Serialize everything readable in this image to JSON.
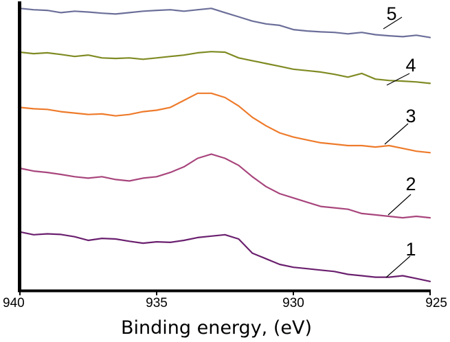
{
  "chart_data": {
    "type": "line",
    "title": "",
    "xlabel": "Binding energy, (eV)",
    "ylabel": "",
    "xlim": [
      940,
      925
    ],
    "x_reversed": true,
    "ylim": [
      0,
      1
    ],
    "yaxis_ticks_visible": false,
    "grid": false,
    "legend": "none",
    "xticks": [
      "940",
      "935",
      "930",
      "925"
    ],
    "series": [
      {
        "name": "1",
        "color": "#6a1f6e",
        "points": [
          [
            940,
            0.195
          ],
          [
            939.5,
            0.185
          ],
          [
            939,
            0.188
          ],
          [
            938.5,
            0.186
          ],
          [
            938,
            0.178
          ],
          [
            937.5,
            0.165
          ],
          [
            937,
            0.172
          ],
          [
            936.5,
            0.17
          ],
          [
            936,
            0.162
          ],
          [
            935.5,
            0.155
          ],
          [
            935,
            0.16
          ],
          [
            934.5,
            0.158
          ],
          [
            934,
            0.165
          ],
          [
            933.5,
            0.175
          ],
          [
            933,
            0.18
          ],
          [
            932.5,
            0.185
          ],
          [
            932,
            0.17
          ],
          [
            931.5,
            0.12
          ],
          [
            931,
            0.1
          ],
          [
            930.5,
            0.08
          ],
          [
            930,
            0.07
          ],
          [
            929.5,
            0.065
          ],
          [
            929,
            0.06
          ],
          [
            928.5,
            0.055
          ],
          [
            928,
            0.045
          ],
          [
            927.5,
            0.04
          ],
          [
            927,
            0.035
          ],
          [
            926.5,
            0.035
          ],
          [
            926,
            0.04
          ],
          [
            925.5,
            0.03
          ],
          [
            925,
            0.02
          ]
        ]
      },
      {
        "name": "2",
        "color": "#a8457c",
        "points": [
          [
            940,
            0.42
          ],
          [
            939.5,
            0.41
          ],
          [
            939,
            0.405
          ],
          [
            938.5,
            0.398
          ],
          [
            938,
            0.39
          ],
          [
            937.5,
            0.385
          ],
          [
            937,
            0.39
          ],
          [
            936.5,
            0.38
          ],
          [
            936,
            0.375
          ],
          [
            935.5,
            0.385
          ],
          [
            935,
            0.39
          ],
          [
            934.5,
            0.405
          ],
          [
            934,
            0.425
          ],
          [
            933.5,
            0.455
          ],
          [
            933,
            0.47
          ],
          [
            932.5,
            0.455
          ],
          [
            932,
            0.43
          ],
          [
            931.5,
            0.39
          ],
          [
            931,
            0.355
          ],
          [
            930.5,
            0.33
          ],
          [
            930,
            0.315
          ],
          [
            929.5,
            0.3
          ],
          [
            929,
            0.285
          ],
          [
            928.5,
            0.28
          ],
          [
            928,
            0.275
          ],
          [
            927.5,
            0.26
          ],
          [
            927,
            0.255
          ],
          [
            926.5,
            0.25
          ],
          [
            926,
            0.245
          ],
          [
            925.5,
            0.25
          ],
          [
            925,
            0.245
          ]
        ]
      },
      {
        "name": "3",
        "color": "#ee7a2a",
        "points": [
          [
            940,
            0.635
          ],
          [
            939.5,
            0.63
          ],
          [
            939,
            0.628
          ],
          [
            938.5,
            0.62
          ],
          [
            938,
            0.615
          ],
          [
            937.5,
            0.61
          ],
          [
            937,
            0.612
          ],
          [
            936.5,
            0.605
          ],
          [
            936,
            0.61
          ],
          [
            935.5,
            0.62
          ],
          [
            935,
            0.625
          ],
          [
            934.5,
            0.635
          ],
          [
            934,
            0.66
          ],
          [
            933.5,
            0.685
          ],
          [
            933,
            0.685
          ],
          [
            932.5,
            0.67
          ],
          [
            932,
            0.64
          ],
          [
            931.5,
            0.6
          ],
          [
            931,
            0.57
          ],
          [
            930.5,
            0.545
          ],
          [
            930,
            0.53
          ],
          [
            929.5,
            0.52
          ],
          [
            929,
            0.51
          ],
          [
            928.5,
            0.505
          ],
          [
            928,
            0.5
          ],
          [
            927.5,
            0.5
          ],
          [
            927,
            0.495
          ],
          [
            926.5,
            0.5
          ],
          [
            926,
            0.49
          ],
          [
            925.5,
            0.48
          ],
          [
            925,
            0.475
          ]
        ]
      },
      {
        "name": "4",
        "color": "#7f8a22",
        "points": [
          [
            940,
            0.83
          ],
          [
            939.5,
            0.825
          ],
          [
            939,
            0.828
          ],
          [
            938.5,
            0.822
          ],
          [
            938,
            0.815
          ],
          [
            937.5,
            0.82
          ],
          [
            937,
            0.81
          ],
          [
            936.5,
            0.808
          ],
          [
            936,
            0.81
          ],
          [
            935.5,
            0.805
          ],
          [
            935,
            0.81
          ],
          [
            934.5,
            0.815
          ],
          [
            934,
            0.82
          ],
          [
            933.5,
            0.828
          ],
          [
            933,
            0.832
          ],
          [
            932.5,
            0.83
          ],
          [
            932,
            0.81
          ],
          [
            931.5,
            0.8
          ],
          [
            931,
            0.79
          ],
          [
            930.5,
            0.78
          ],
          [
            930,
            0.77
          ],
          [
            929.5,
            0.765
          ],
          [
            929,
            0.76
          ],
          [
            928.5,
            0.752
          ],
          [
            928,
            0.742
          ],
          [
            927.5,
            0.755
          ],
          [
            927,
            0.735
          ],
          [
            926.5,
            0.73
          ],
          [
            926,
            0.728
          ],
          [
            925.5,
            0.725
          ],
          [
            925,
            0.72
          ]
        ]
      },
      {
        "name": "5",
        "color": "#6b6e99",
        "points": [
          [
            940,
            0.985
          ],
          [
            939.5,
            0.98
          ],
          [
            939,
            0.978
          ],
          [
            938.5,
            0.97
          ],
          [
            938,
            0.975
          ],
          [
            937.5,
            0.972
          ],
          [
            937,
            0.968
          ],
          [
            936.5,
            0.965
          ],
          [
            936,
            0.97
          ],
          [
            935.5,
            0.975
          ],
          [
            935,
            0.978
          ],
          [
            934.5,
            0.98
          ],
          [
            934,
            0.975
          ],
          [
            933.5,
            0.98
          ],
          [
            933,
            0.985
          ],
          [
            932.5,
            0.97
          ],
          [
            932,
            0.955
          ],
          [
            931.5,
            0.94
          ],
          [
            931,
            0.93
          ],
          [
            930.5,
            0.925
          ],
          [
            930,
            0.91
          ],
          [
            929.5,
            0.905
          ],
          [
            929,
            0.902
          ],
          [
            928.5,
            0.9
          ],
          [
            928,
            0.895
          ],
          [
            927.5,
            0.9
          ],
          [
            927,
            0.892
          ],
          [
            926.5,
            0.888
          ],
          [
            926,
            0.885
          ],
          [
            925.5,
            0.89
          ],
          [
            925,
            0.882
          ]
        ]
      }
    ]
  }
}
